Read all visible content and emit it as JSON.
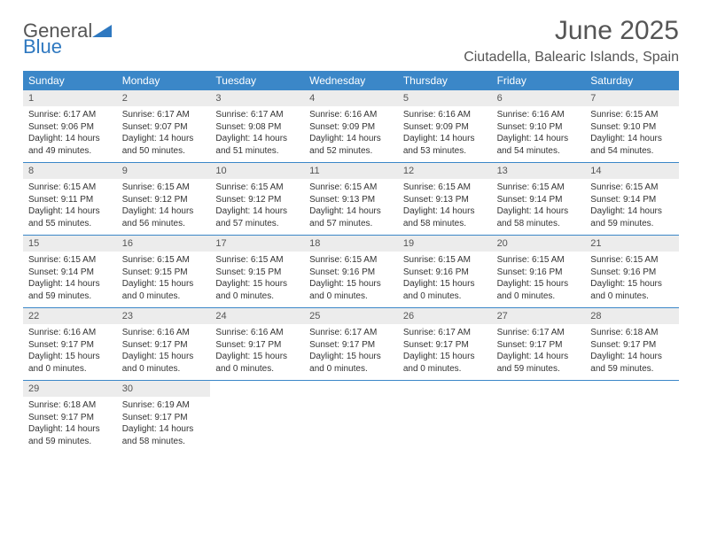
{
  "brand": {
    "name_part1": "General",
    "name_part2": "Blue"
  },
  "title": "June 2025",
  "location": "Ciutadella, Balearic Islands, Spain",
  "colors": {
    "header_bg": "#3b87c8",
    "header_text": "#ffffff",
    "daynum_bg": "#ececec",
    "text": "#333333",
    "title_text": "#555555",
    "rule": "#3b87c8",
    "logo_blue": "#2e78c0"
  },
  "weekdays": [
    "Sunday",
    "Monday",
    "Tuesday",
    "Wednesday",
    "Thursday",
    "Friday",
    "Saturday"
  ],
  "weeks": [
    [
      {
        "n": "1",
        "sr": "Sunrise: 6:17 AM",
        "ss": "Sunset: 9:06 PM",
        "d1": "Daylight: 14 hours",
        "d2": "and 49 minutes."
      },
      {
        "n": "2",
        "sr": "Sunrise: 6:17 AM",
        "ss": "Sunset: 9:07 PM",
        "d1": "Daylight: 14 hours",
        "d2": "and 50 minutes."
      },
      {
        "n": "3",
        "sr": "Sunrise: 6:17 AM",
        "ss": "Sunset: 9:08 PM",
        "d1": "Daylight: 14 hours",
        "d2": "and 51 minutes."
      },
      {
        "n": "4",
        "sr": "Sunrise: 6:16 AM",
        "ss": "Sunset: 9:09 PM",
        "d1": "Daylight: 14 hours",
        "d2": "and 52 minutes."
      },
      {
        "n": "5",
        "sr": "Sunrise: 6:16 AM",
        "ss": "Sunset: 9:09 PM",
        "d1": "Daylight: 14 hours",
        "d2": "and 53 minutes."
      },
      {
        "n": "6",
        "sr": "Sunrise: 6:16 AM",
        "ss": "Sunset: 9:10 PM",
        "d1": "Daylight: 14 hours",
        "d2": "and 54 minutes."
      },
      {
        "n": "7",
        "sr": "Sunrise: 6:15 AM",
        "ss": "Sunset: 9:10 PM",
        "d1": "Daylight: 14 hours",
        "d2": "and 54 minutes."
      }
    ],
    [
      {
        "n": "8",
        "sr": "Sunrise: 6:15 AM",
        "ss": "Sunset: 9:11 PM",
        "d1": "Daylight: 14 hours",
        "d2": "and 55 minutes."
      },
      {
        "n": "9",
        "sr": "Sunrise: 6:15 AM",
        "ss": "Sunset: 9:12 PM",
        "d1": "Daylight: 14 hours",
        "d2": "and 56 minutes."
      },
      {
        "n": "10",
        "sr": "Sunrise: 6:15 AM",
        "ss": "Sunset: 9:12 PM",
        "d1": "Daylight: 14 hours",
        "d2": "and 57 minutes."
      },
      {
        "n": "11",
        "sr": "Sunrise: 6:15 AM",
        "ss": "Sunset: 9:13 PM",
        "d1": "Daylight: 14 hours",
        "d2": "and 57 minutes."
      },
      {
        "n": "12",
        "sr": "Sunrise: 6:15 AM",
        "ss": "Sunset: 9:13 PM",
        "d1": "Daylight: 14 hours",
        "d2": "and 58 minutes."
      },
      {
        "n": "13",
        "sr": "Sunrise: 6:15 AM",
        "ss": "Sunset: 9:14 PM",
        "d1": "Daylight: 14 hours",
        "d2": "and 58 minutes."
      },
      {
        "n": "14",
        "sr": "Sunrise: 6:15 AM",
        "ss": "Sunset: 9:14 PM",
        "d1": "Daylight: 14 hours",
        "d2": "and 59 minutes."
      }
    ],
    [
      {
        "n": "15",
        "sr": "Sunrise: 6:15 AM",
        "ss": "Sunset: 9:14 PM",
        "d1": "Daylight: 14 hours",
        "d2": "and 59 minutes."
      },
      {
        "n": "16",
        "sr": "Sunrise: 6:15 AM",
        "ss": "Sunset: 9:15 PM",
        "d1": "Daylight: 15 hours",
        "d2": "and 0 minutes."
      },
      {
        "n": "17",
        "sr": "Sunrise: 6:15 AM",
        "ss": "Sunset: 9:15 PM",
        "d1": "Daylight: 15 hours",
        "d2": "and 0 minutes."
      },
      {
        "n": "18",
        "sr": "Sunrise: 6:15 AM",
        "ss": "Sunset: 9:16 PM",
        "d1": "Daylight: 15 hours",
        "d2": "and 0 minutes."
      },
      {
        "n": "19",
        "sr": "Sunrise: 6:15 AM",
        "ss": "Sunset: 9:16 PM",
        "d1": "Daylight: 15 hours",
        "d2": "and 0 minutes."
      },
      {
        "n": "20",
        "sr": "Sunrise: 6:15 AM",
        "ss": "Sunset: 9:16 PM",
        "d1": "Daylight: 15 hours",
        "d2": "and 0 minutes."
      },
      {
        "n": "21",
        "sr": "Sunrise: 6:15 AM",
        "ss": "Sunset: 9:16 PM",
        "d1": "Daylight: 15 hours",
        "d2": "and 0 minutes."
      }
    ],
    [
      {
        "n": "22",
        "sr": "Sunrise: 6:16 AM",
        "ss": "Sunset: 9:17 PM",
        "d1": "Daylight: 15 hours",
        "d2": "and 0 minutes."
      },
      {
        "n": "23",
        "sr": "Sunrise: 6:16 AM",
        "ss": "Sunset: 9:17 PM",
        "d1": "Daylight: 15 hours",
        "d2": "and 0 minutes."
      },
      {
        "n": "24",
        "sr": "Sunrise: 6:16 AM",
        "ss": "Sunset: 9:17 PM",
        "d1": "Daylight: 15 hours",
        "d2": "and 0 minutes."
      },
      {
        "n": "25",
        "sr": "Sunrise: 6:17 AM",
        "ss": "Sunset: 9:17 PM",
        "d1": "Daylight: 15 hours",
        "d2": "and 0 minutes."
      },
      {
        "n": "26",
        "sr": "Sunrise: 6:17 AM",
        "ss": "Sunset: 9:17 PM",
        "d1": "Daylight: 15 hours",
        "d2": "and 0 minutes."
      },
      {
        "n": "27",
        "sr": "Sunrise: 6:17 AM",
        "ss": "Sunset: 9:17 PM",
        "d1": "Daylight: 14 hours",
        "d2": "and 59 minutes."
      },
      {
        "n": "28",
        "sr": "Sunrise: 6:18 AM",
        "ss": "Sunset: 9:17 PM",
        "d1": "Daylight: 14 hours",
        "d2": "and 59 minutes."
      }
    ],
    [
      {
        "n": "29",
        "sr": "Sunrise: 6:18 AM",
        "ss": "Sunset: 9:17 PM",
        "d1": "Daylight: 14 hours",
        "d2": "and 59 minutes."
      },
      {
        "n": "30",
        "sr": "Sunrise: 6:19 AM",
        "ss": "Sunset: 9:17 PM",
        "d1": "Daylight: 14 hours",
        "d2": "and 58 minutes."
      },
      null,
      null,
      null,
      null,
      null
    ]
  ]
}
